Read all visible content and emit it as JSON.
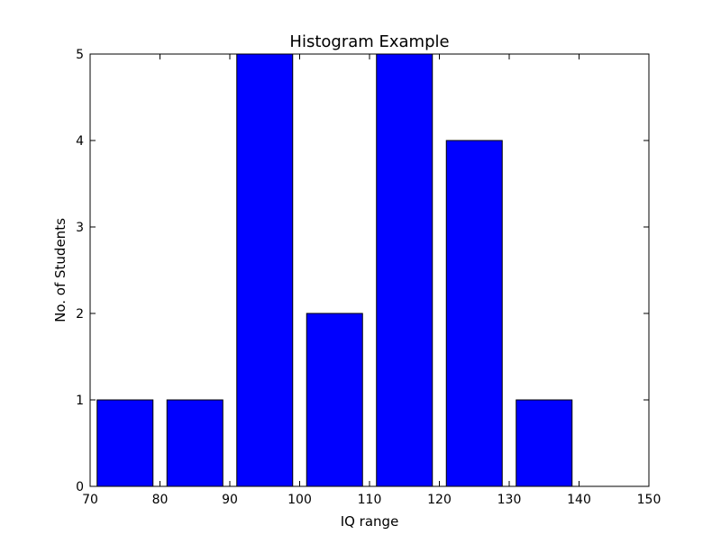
{
  "chart_data": {
    "type": "bar",
    "title": "Histogram Example",
    "xlabel": "IQ range",
    "ylabel": "No. of Students",
    "xlim": [
      70,
      150
    ],
    "ylim": [
      0,
      5
    ],
    "xticks": [
      70,
      80,
      90,
      100,
      110,
      120,
      130,
      140,
      150
    ],
    "yticks": [
      0,
      1,
      2,
      3,
      4,
      5
    ],
    "bin_edges": [
      71,
      81,
      91,
      101,
      111,
      121,
      131,
      141
    ],
    "bin_width": 8,
    "values": [
      1,
      1,
      5,
      2,
      5,
      4,
      1,
      0
    ],
    "bar_color": "#0000ff",
    "edge_color": "#000000",
    "grid": false,
    "legend": "none"
  }
}
